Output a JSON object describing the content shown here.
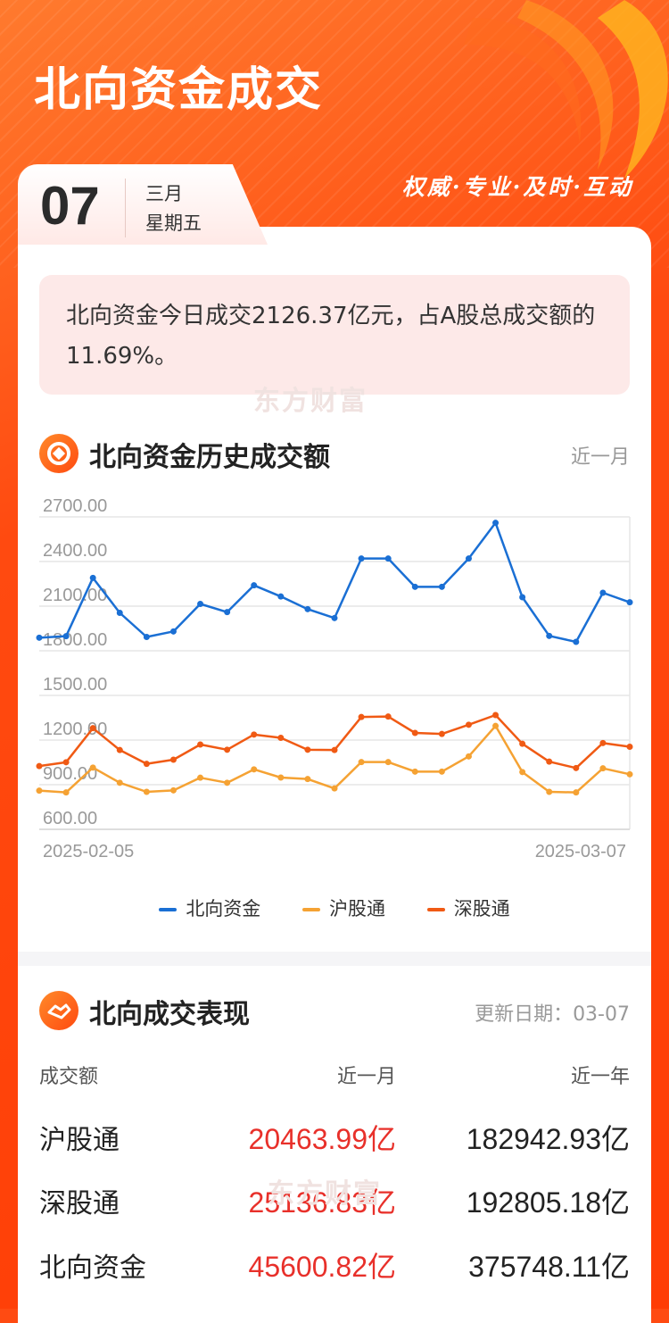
{
  "header": {
    "title": "北向资金成交",
    "slogan": "权威·专业·及时·互动"
  },
  "date": {
    "day": "07",
    "month": "三月",
    "weekday": "星期五"
  },
  "summary": {
    "text": "北向资金今日成交2126.37亿元，占A股总成交额的11.69%。"
  },
  "watermark": "东方财富",
  "history": {
    "title": "北向资金历史成交额",
    "range": "近一月"
  },
  "chart_data": {
    "type": "line",
    "x_start": "2025-02-05",
    "x_end": "2025-03-07",
    "ylim": [
      600,
      2700
    ],
    "yticks": [
      "2700.00",
      "2400.00",
      "2100.00",
      "1800.00",
      "1500.00",
      "1200.00",
      "900.00",
      "600.00"
    ],
    "series": [
      {
        "name": "北向资金",
        "color": "#1a6fd4",
        "values": [
          1888,
          1898,
          2290,
          2055,
          1893,
          1930,
          2115,
          2060,
          2240,
          2165,
          2080,
          2020,
          2420,
          2420,
          2230,
          2230,
          2420,
          2660,
          2160,
          1900,
          1860,
          2190,
          2126
        ]
      },
      {
        "name": "沪股通",
        "color": "#f5a233",
        "values": [
          860,
          848,
          1015,
          913,
          852,
          862,
          947,
          913,
          1003,
          948,
          938,
          875,
          1052,
          1052,
          988,
          988,
          1090,
          1295,
          985,
          852,
          848,
          1010,
          970
        ]
      },
      {
        "name": "深股通",
        "color": "#f05a14",
        "values": [
          1025,
          1051,
          1280,
          1133,
          1040,
          1068,
          1170,
          1135,
          1237,
          1215,
          1135,
          1133,
          1355,
          1358,
          1248,
          1241,
          1303,
          1368,
          1175,
          1055,
          1012,
          1180,
          1155
        ]
      }
    ]
  },
  "performance": {
    "title": "北向成交表现",
    "updated": "更新日期：03-07",
    "headers": [
      "成交额",
      "近一月",
      "近一年"
    ],
    "rows": [
      {
        "name": "沪股通",
        "month": "20463.99亿",
        "year": "182942.93亿"
      },
      {
        "name": "深股通",
        "month": "25136.83亿",
        "year": "192805.18亿"
      },
      {
        "name": "北向资金",
        "month": "45600.82亿",
        "year": "375748.11亿"
      }
    ]
  }
}
